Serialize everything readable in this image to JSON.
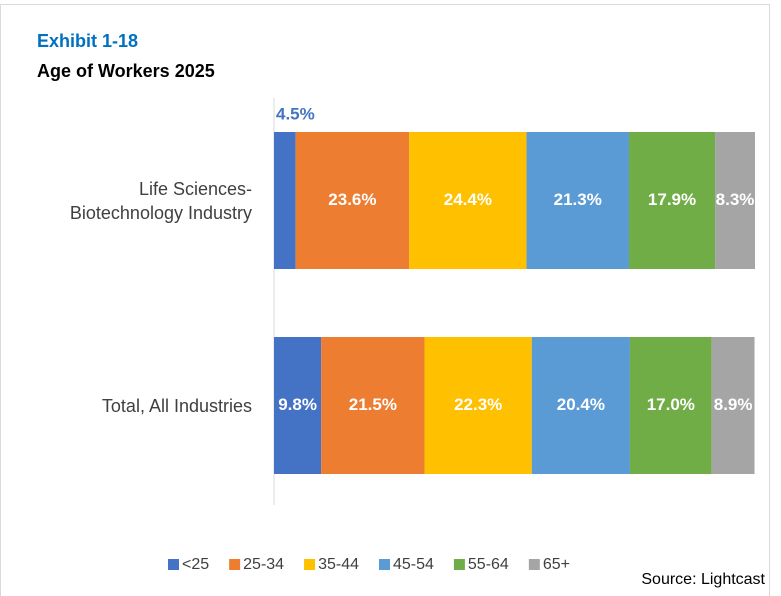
{
  "chart_data": {
    "type": "stacked-bar-horizontal",
    "title": "Exhibit 1-18",
    "subtitle": "Age of Workers 2025",
    "source": "Source: Lightcast",
    "categories": [
      "Life Sciences-\nBiotechnology Industry",
      "Total, All Industries"
    ],
    "xlim": [
      0,
      100
    ],
    "legend": "bottom",
    "series": [
      {
        "name": "<25",
        "color": "#4472c4",
        "values": [
          4.5,
          9.8
        ],
        "value_labels": [
          "4.5%",
          "9.8%"
        ]
      },
      {
        "name": "25-34",
        "color": "#ed7d31",
        "values": [
          23.6,
          21.5
        ],
        "value_labels": [
          "23.6%",
          "21.5%"
        ]
      },
      {
        "name": "35-44",
        "color": "#ffc000",
        "values": [
          24.4,
          22.3
        ],
        "value_labels": [
          "24.4%",
          "22.3%"
        ]
      },
      {
        "name": "45-54",
        "color": "#5b9bd5",
        "values": [
          21.3,
          20.4
        ],
        "value_labels": [
          "21.3%",
          "20.4%"
        ]
      },
      {
        "name": "55-64",
        "color": "#70ad47",
        "values": [
          17.9,
          17.0
        ],
        "value_labels": [
          "17.9%",
          "17.0%"
        ]
      },
      {
        "name": "65+",
        "color": "#a5a5a5",
        "values": [
          8.3,
          8.9
        ],
        "value_labels": [
          "8.3%",
          "8.9%"
        ]
      }
    ]
  }
}
